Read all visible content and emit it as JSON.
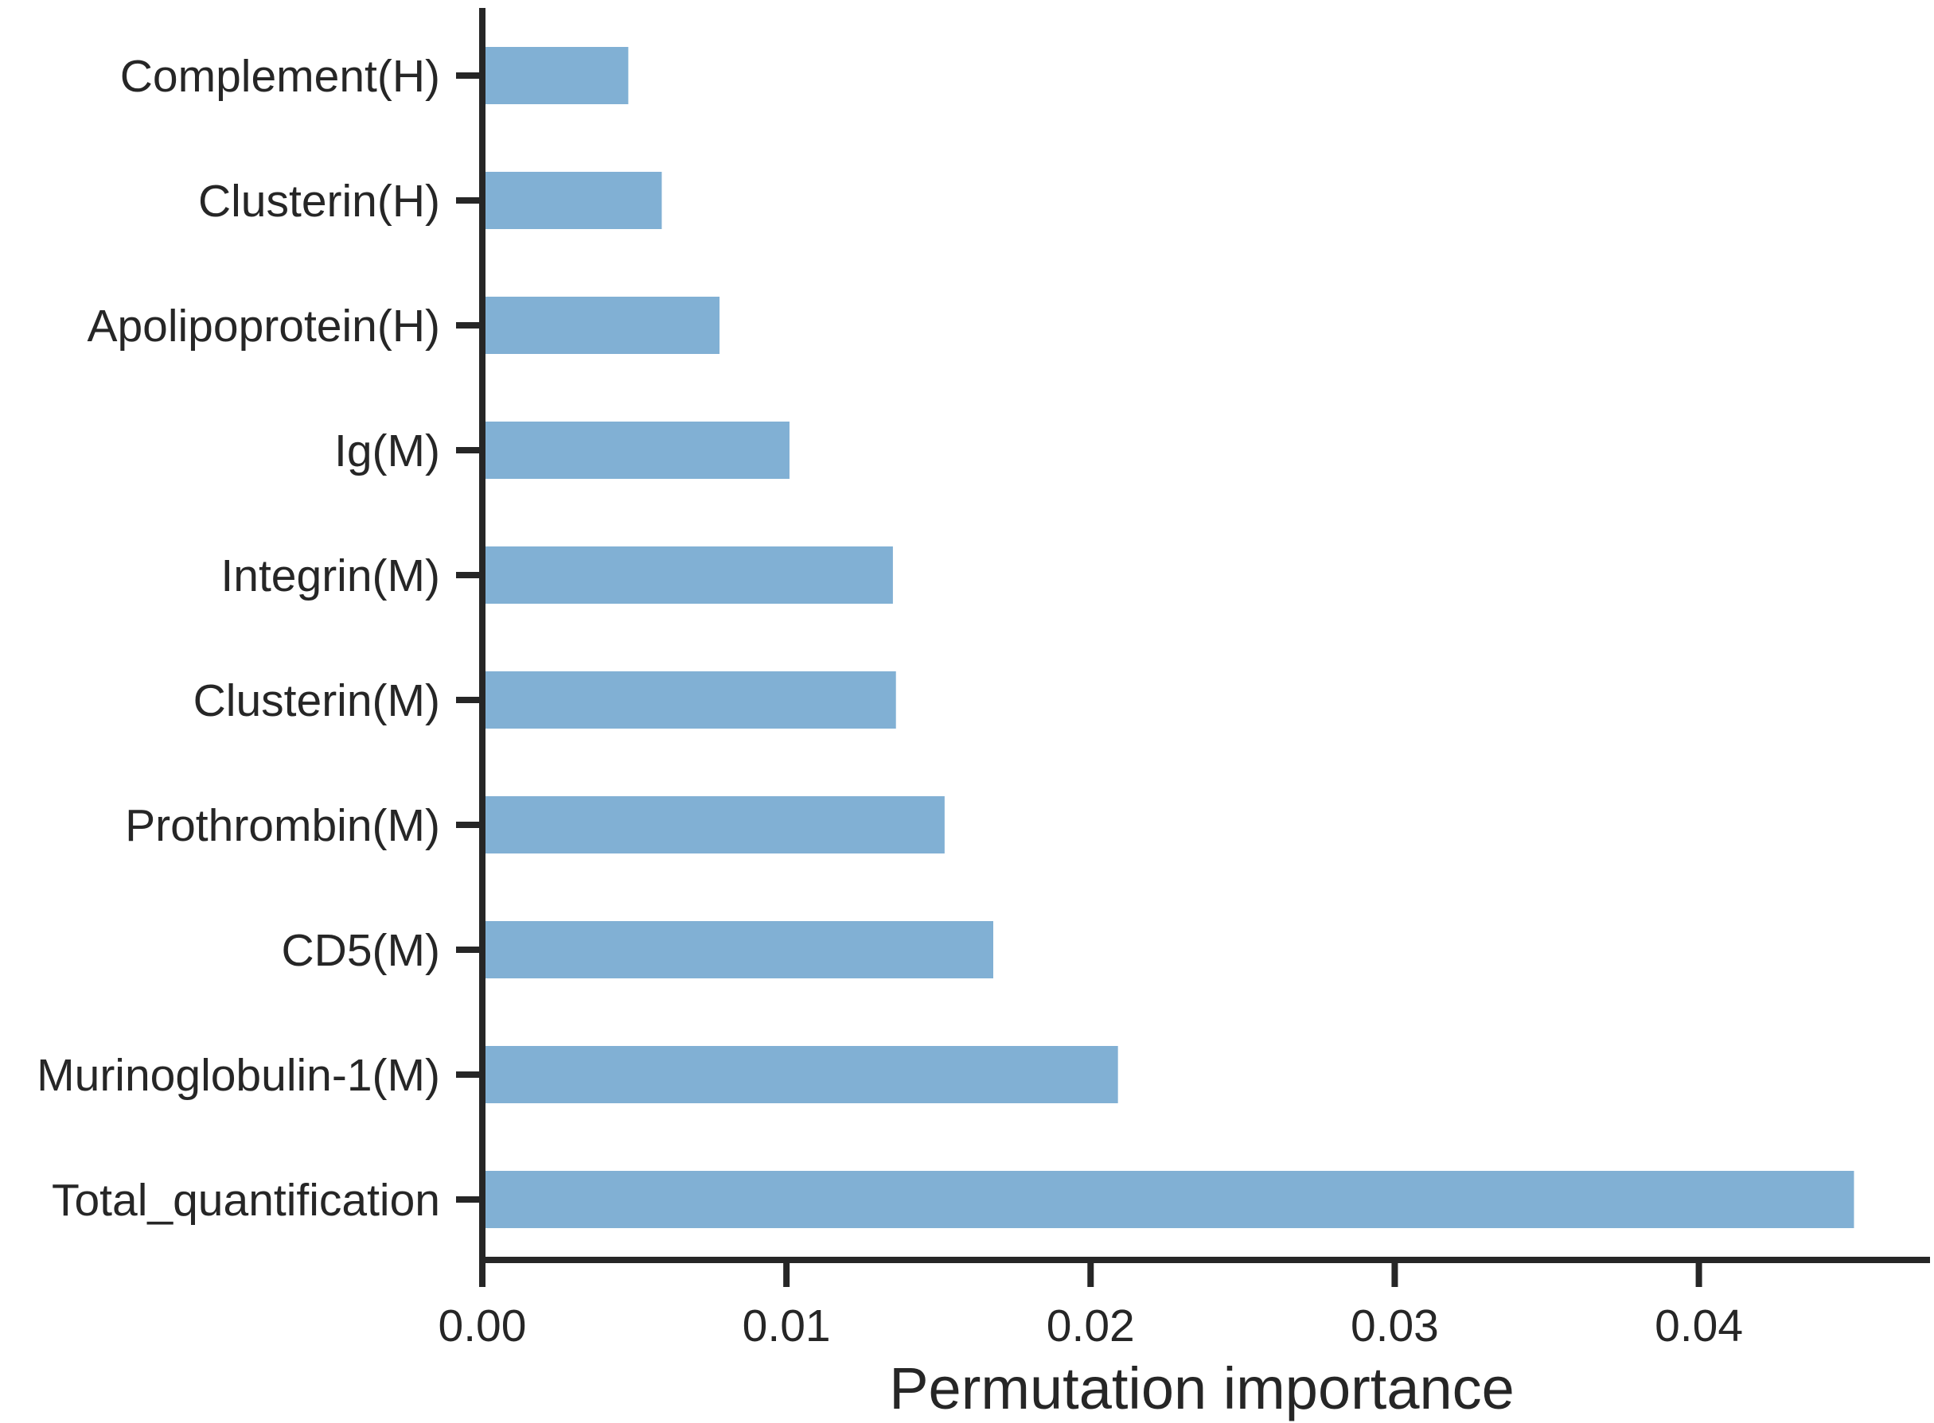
{
  "chart_data": {
    "type": "bar",
    "orientation": "horizontal",
    "title": "",
    "xlabel": "Permutation importance",
    "ylabel": "",
    "categories": [
      "Complement(H)",
      "Clusterin(H)",
      "Apolipoprotein(H)",
      "Ig(M)",
      "Integrin(M)",
      "Clusterin(M)",
      "Prothrombin(M)",
      "CD5(M)",
      "Murinoglobulin-1(M)",
      "Total_quantification"
    ],
    "values": [
      0.0048,
      0.0059,
      0.0078,
      0.0101,
      0.0135,
      0.0136,
      0.0152,
      0.0168,
      0.0209,
      0.0451
    ],
    "xlim": [
      0,
      0.0476
    ],
    "xticks": [
      0.0,
      0.01,
      0.02,
      0.03,
      0.04
    ],
    "xtick_labels": [
      "0.00",
      "0.01",
      "0.02",
      "0.03",
      "0.04"
    ],
    "grid": false,
    "legend": "none",
    "colors": {
      "bar": "#81b0d4",
      "axis": "#262626",
      "text": "#262626"
    }
  }
}
